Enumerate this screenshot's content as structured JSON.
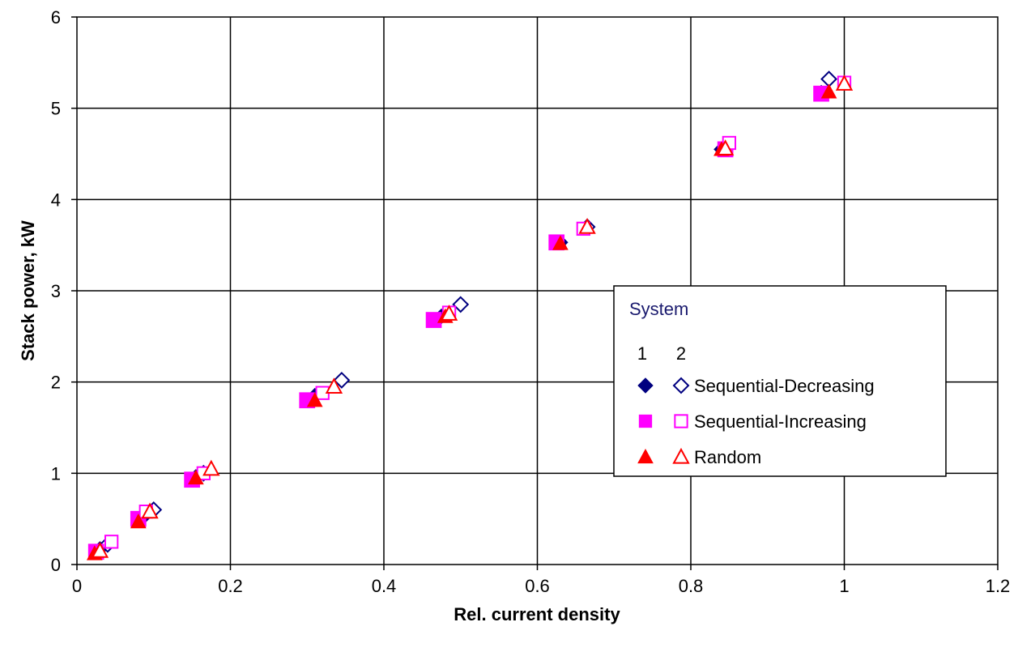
{
  "chart_data": {
    "type": "scatter",
    "title": "",
    "xlabel": "Rel. current density",
    "ylabel": "Stack power, kW",
    "xlim": [
      0,
      1.2
    ],
    "ylim": [
      0,
      6
    ],
    "x_ticks": [
      "0",
      "0.2",
      "0.4",
      "0.6",
      "0.8",
      "1",
      "1.2"
    ],
    "y_ticks": [
      "0",
      "1",
      "2",
      "3",
      "4",
      "5",
      "6"
    ],
    "grid": true,
    "legend": {
      "title": "System",
      "column_headers": [
        "1",
        "2"
      ],
      "placement": "center-right",
      "entries": [
        "Sequential-Decreasing",
        "Sequential-Increasing",
        "Random"
      ]
    },
    "series": [
      {
        "system": "1",
        "legend_entry": "Sequential-Decreasing",
        "marker": "diamond-filled",
        "color": "#000080",
        "points": [
          [
            0.03,
            0.17
          ],
          [
            0.09,
            0.55
          ],
          [
            0.155,
            0.96
          ],
          [
            0.31,
            1.85
          ],
          [
            0.475,
            2.72
          ],
          [
            0.63,
            3.53
          ],
          [
            0.84,
            4.55
          ],
          [
            0.97,
            5.17
          ]
        ]
      },
      {
        "system": "2",
        "legend_entry": "Sequential-Decreasing",
        "marker": "diamond-open",
        "color": "#000080",
        "points": [
          [
            0.04,
            0.22
          ],
          [
            0.1,
            0.6
          ],
          [
            0.165,
            1.0
          ],
          [
            0.345,
            2.02
          ],
          [
            0.5,
            2.85
          ],
          [
            0.665,
            3.7
          ],
          [
            0.845,
            4.58
          ],
          [
            0.98,
            5.32
          ]
        ]
      },
      {
        "system": "1",
        "legend_entry": "Sequential-Increasing",
        "marker": "square-filled",
        "color": "#ff00ff",
        "points": [
          [
            0.025,
            0.14
          ],
          [
            0.08,
            0.5
          ],
          [
            0.15,
            0.93
          ],
          [
            0.3,
            1.8
          ],
          [
            0.465,
            2.68
          ],
          [
            0.625,
            3.53
          ],
          [
            0.845,
            4.55
          ],
          [
            0.97,
            5.16
          ]
        ]
      },
      {
        "system": "2",
        "legend_entry": "Sequential-Increasing",
        "marker": "square-open",
        "color": "#ff00ff",
        "points": [
          [
            0.045,
            0.25
          ],
          [
            0.09,
            0.58
          ],
          [
            0.165,
            1.0
          ],
          [
            0.32,
            1.88
          ],
          [
            0.485,
            2.76
          ],
          [
            0.66,
            3.68
          ],
          [
            0.85,
            4.62
          ],
          [
            1.0,
            5.28
          ]
        ]
      },
      {
        "system": "1",
        "legend_entry": "Random",
        "marker": "triangle-filled",
        "color": "#ff0000",
        "points": [
          [
            0.023,
            0.12
          ],
          [
            0.08,
            0.47
          ],
          [
            0.155,
            0.95
          ],
          [
            0.31,
            1.8
          ],
          [
            0.48,
            2.72
          ],
          [
            0.63,
            3.52
          ],
          [
            0.84,
            4.55
          ],
          [
            0.98,
            5.18
          ]
        ]
      },
      {
        "system": "2",
        "legend_entry": "Random",
        "marker": "triangle-open",
        "color": "#ff0000",
        "points": [
          [
            0.03,
            0.15
          ],
          [
            0.095,
            0.58
          ],
          [
            0.175,
            1.05
          ],
          [
            0.335,
            1.95
          ],
          [
            0.485,
            2.75
          ],
          [
            0.665,
            3.7
          ],
          [
            0.845,
            4.56
          ],
          [
            1.0,
            5.27
          ]
        ]
      }
    ]
  }
}
